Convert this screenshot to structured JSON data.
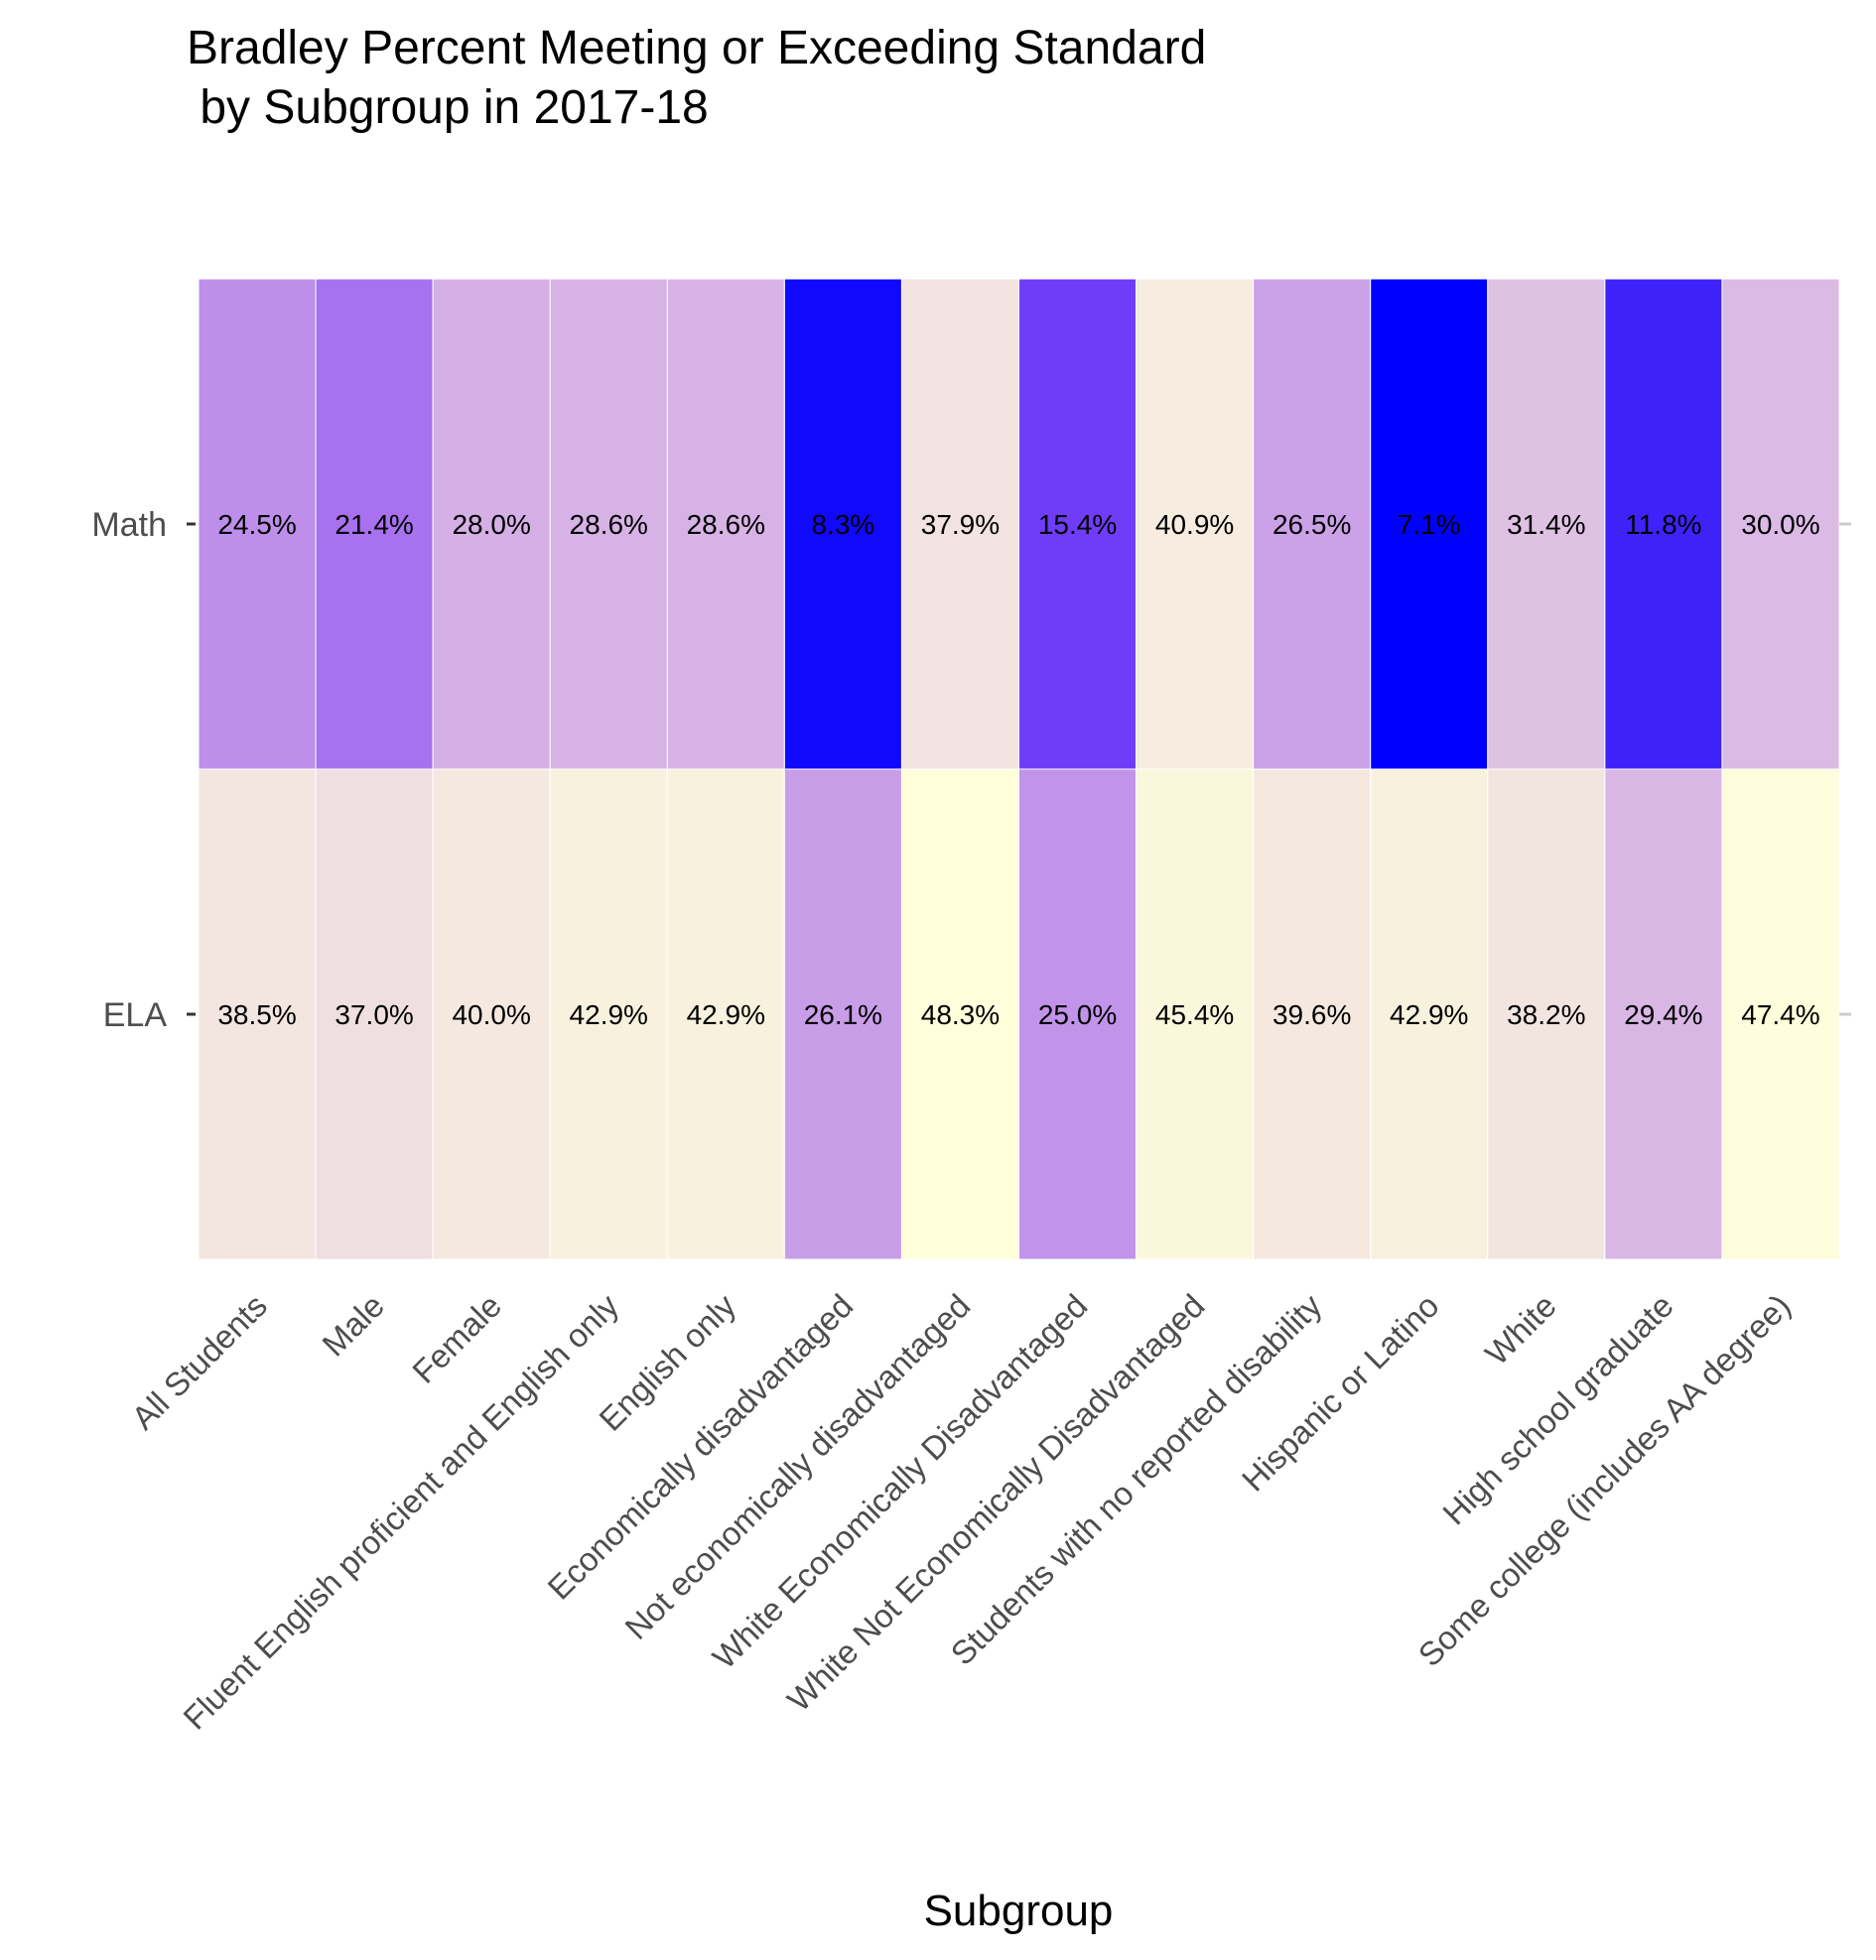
{
  "chart_data": {
    "type": "heatmap",
    "title_lines": [
      "Bradley Percent Meeting or Exceeding Standard",
      " by Subgroup in 2017-18"
    ],
    "xlabel": "Subgroup",
    "ylabel": "",
    "x_categories": [
      "All Students",
      "Male",
      "Female",
      "Fluent English proficient and English only",
      "English only",
      "Economically disadvantaged",
      "Not economically disadvantaged",
      "White Economically Disadvantaged",
      "White Not Economically Disadvantaged",
      "Students with no reported disability",
      "Hispanic or Latino",
      "White",
      "High school graduate",
      "Some college (includes AA degree)"
    ],
    "y_categories": [
      "Math",
      "ELA"
    ],
    "rows": [
      {
        "name": "Math",
        "values": [
          24.5,
          21.4,
          28.0,
          28.6,
          28.6,
          8.3,
          37.9,
          15.4,
          40.9,
          26.5,
          7.1,
          31.4,
          11.8,
          30.0
        ],
        "labels": [
          "24.5%",
          "21.4%",
          "28.0%",
          "28.6%",
          "28.6%",
          "8.3%",
          "37.9%",
          "15.4%",
          "40.9%",
          "26.5%",
          "7.1%",
          "31.4%",
          "11.8%",
          "30.0%"
        ]
      },
      {
        "name": "ELA",
        "values": [
          38.5,
          37.0,
          40.0,
          42.9,
          42.9,
          26.1,
          48.3,
          25.0,
          45.4,
          39.6,
          42.9,
          38.2,
          29.4,
          47.4
        ],
        "labels": [
          "38.5%",
          "37.0%",
          "40.0%",
          "42.9%",
          "42.9%",
          "26.1%",
          "48.3%",
          "25.0%",
          "45.4%",
          "39.6%",
          "42.9%",
          "38.2%",
          "29.4%",
          "47.4%"
        ]
      }
    ],
    "color_scale": {
      "min": 7.1,
      "max": 48.3,
      "stops": [
        "#0000ff",
        "#8a4af5",
        "#d4aee6",
        "#f2e4e0",
        "#ffffdc"
      ]
    },
    "legend": "none",
    "grid": false
  }
}
